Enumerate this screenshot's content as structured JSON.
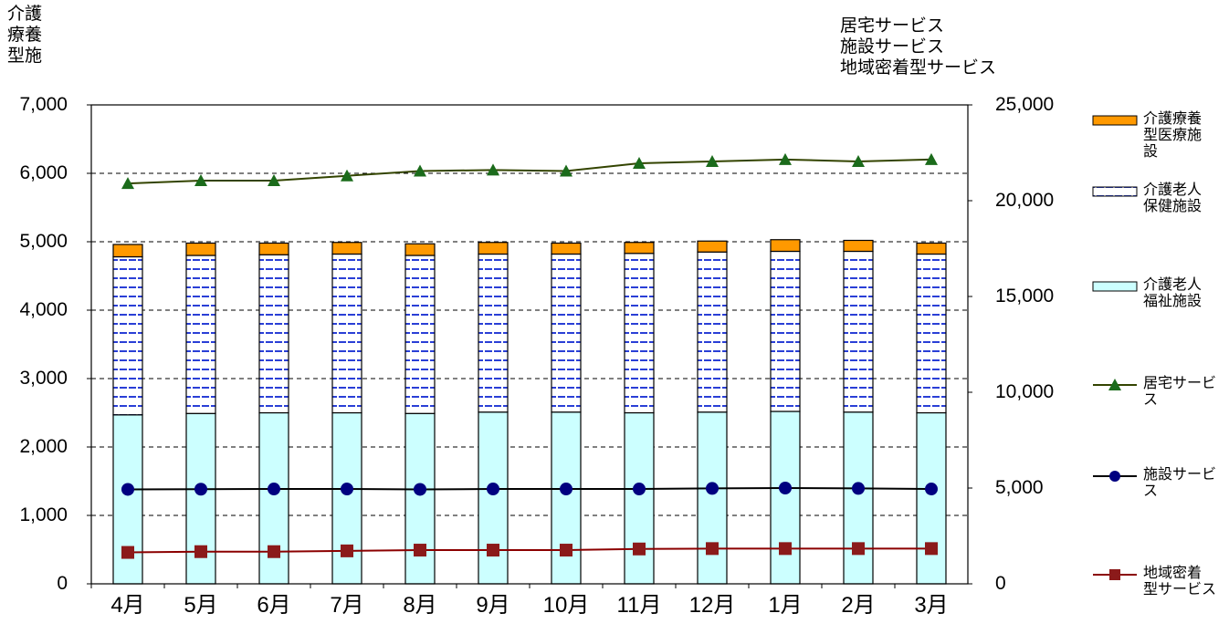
{
  "chart_data": {
    "type": "bar",
    "left_axis": {
      "title": "介護\n療養\n型施",
      "ylim": [
        0,
        7000
      ],
      "ticks": [
        "0",
        "1,000",
        "2,000",
        "3,000",
        "4,000",
        "5,000",
        "6,000",
        "7,000"
      ]
    },
    "right_axis": {
      "title": "居宅サービス\n施設サービス\n地域密着型サービス",
      "ylim": [
        0,
        25000
      ],
      "ticks": [
        "0",
        "5,000",
        "10,000",
        "15,000",
        "20,000",
        "25,000"
      ]
    },
    "categories": [
      "4月",
      "5月",
      "6月",
      "7月",
      "8月",
      "9月",
      "10月",
      "11月",
      "12月",
      "1月",
      "2月",
      "3月"
    ],
    "grid": true,
    "legend_position": "right",
    "stacked_bars": [
      {
        "name": "介護老人\n福祉施設",
        "color": "#ccffff",
        "pattern": "solid",
        "values": [
          2470,
          2490,
          2500,
          2500,
          2490,
          2510,
          2510,
          2500,
          2510,
          2520,
          2510,
          2500
        ]
      },
      {
        "name": "介護老人\n保健施設",
        "color": "#ffffff",
        "pattern": "dashes",
        "values": [
          2310,
          2310,
          2310,
          2320,
          2310,
          2310,
          2310,
          2330,
          2340,
          2340,
          2350,
          2320
        ]
      },
      {
        "name": "介護療養\n型医療施\n設",
        "color": "#ff9900",
        "pattern": "solid",
        "values": [
          180,
          180,
          170,
          170,
          170,
          170,
          160,
          160,
          160,
          170,
          160,
          160
        ]
      }
    ],
    "lines": [
      {
        "name": "居宅サービ\nス",
        "axis": "right",
        "color": "#334400",
        "marker": "triangle",
        "marker_color": "#1b6b1b",
        "values": [
          20900,
          21050,
          21050,
          21300,
          21550,
          21600,
          21550,
          21950,
          22050,
          22150,
          22050,
          22150
        ]
      },
      {
        "name": "施設サービ\nス",
        "axis": "right",
        "color": "#000000",
        "marker": "circle",
        "marker_color": "#000080",
        "values": [
          4930,
          4940,
          4950,
          4950,
          4930,
          4950,
          4950,
          4950,
          4980,
          5000,
          4980,
          4950
        ]
      },
      {
        "name": "地域密着\n型サービス",
        "axis": "right",
        "color": "#8b0000",
        "marker": "square",
        "marker_color": "#8b1a1a",
        "values": [
          1640,
          1680,
          1680,
          1720,
          1760,
          1760,
          1760,
          1820,
          1840,
          1840,
          1840,
          1840
        ]
      }
    ]
  }
}
